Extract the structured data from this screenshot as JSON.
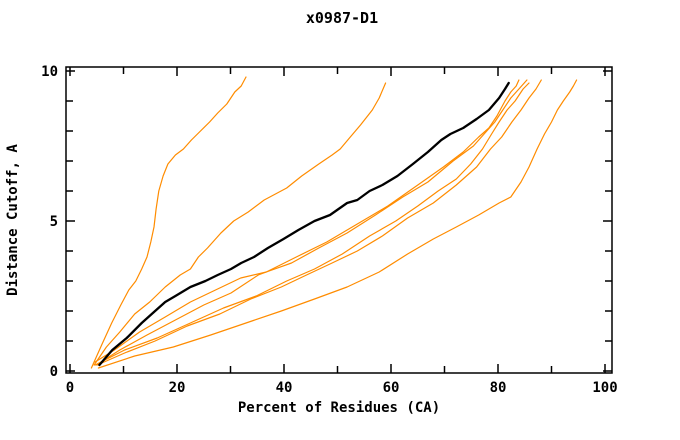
{
  "window": {
    "title": "x0987-D1"
  },
  "chart_data": {
    "type": "line",
    "title": "x0987-D1",
    "xlabel": "Percent of Residues (CA)",
    "ylabel": "Distance Cutoff, A",
    "xlim": [
      0,
      100
    ],
    "ylim": [
      0,
      10
    ],
    "x_tick_minor_step": 10,
    "x_tick_label_step": 20,
    "x_tick_labels": [
      "0",
      "20",
      "40",
      "60",
      "80",
      "100"
    ],
    "y_tick_minor_step": 1,
    "y_tick_label_step": 5,
    "y_tick_labels": [
      "0",
      "5",
      "10"
    ],
    "grid": false,
    "legend": "none",
    "frame": "box with mirrored inward ticks",
    "colors": {
      "model_orange": "#ff8c00",
      "reference_black": "#000000",
      "background": "#ffffff"
    },
    "series": [
      {
        "name": "model-orange-1",
        "color": "#ff8c00",
        "width": 1.2,
        "points": [
          [
            4,
            0.1
          ],
          [
            6,
            0.9
          ],
          [
            7.8,
            1.6
          ],
          [
            9.5,
            2.2
          ],
          [
            11,
            2.7
          ],
          [
            12.3,
            3
          ],
          [
            13.4,
            3.4
          ],
          [
            14.4,
            3.8
          ],
          [
            15.1,
            4.3
          ],
          [
            15.7,
            4.8
          ],
          [
            16.1,
            5.4
          ],
          [
            16.6,
            6
          ],
          [
            17.4,
            6.5
          ],
          [
            18.3,
            6.9
          ],
          [
            19.7,
            7.2
          ],
          [
            21.2,
            7.4
          ],
          [
            22.7,
            7.7
          ],
          [
            24.4,
            8
          ],
          [
            26.1,
            8.3
          ],
          [
            27.6,
            8.6
          ],
          [
            29.3,
            8.9
          ],
          [
            30.8,
            9.3
          ],
          [
            32,
            9.5
          ],
          [
            32.9,
            9.8
          ]
        ]
      },
      {
        "name": "model-orange-2",
        "color": "#ff8c00",
        "width": 1.2,
        "points": [
          [
            4.5,
            0.2
          ],
          [
            6.8,
            0.8
          ],
          [
            9.3,
            1.3
          ],
          [
            12.1,
            1.9
          ],
          [
            14.9,
            2.3
          ],
          [
            17.8,
            2.8
          ],
          [
            20.6,
            3.2
          ],
          [
            22.5,
            3.4
          ],
          [
            24,
            3.8
          ],
          [
            25.7,
            4.1
          ],
          [
            28.2,
            4.6
          ],
          [
            30.6,
            5
          ],
          [
            33.3,
            5.3
          ],
          [
            36.3,
            5.7
          ],
          [
            40.5,
            6.1
          ],
          [
            43.3,
            6.5
          ],
          [
            46.5,
            6.9
          ],
          [
            49,
            7.2
          ],
          [
            50.5,
            7.4
          ],
          [
            52.4,
            7.8
          ],
          [
            54.3,
            8.2
          ],
          [
            56.5,
            8.7
          ],
          [
            57.8,
            9.1
          ],
          [
            59,
            9.6
          ]
        ]
      },
      {
        "name": "model-orange-3",
        "color": "#ff8c00",
        "width": 1.2,
        "points": [
          [
            4.7,
            0.3
          ],
          [
            8.3,
            0.7
          ],
          [
            13,
            1.3
          ],
          [
            17.8,
            1.8
          ],
          [
            22.5,
            2.3
          ],
          [
            27.2,
            2.7
          ],
          [
            31.9,
            3.1
          ],
          [
            36.7,
            3.3
          ],
          [
            42.3,
            3.8
          ],
          [
            48,
            4.3
          ],
          [
            53.7,
            4.9
          ],
          [
            59.4,
            5.5
          ],
          [
            65,
            6.2
          ],
          [
            69.8,
            6.8
          ],
          [
            73.5,
            7.3
          ],
          [
            76.4,
            7.8
          ],
          [
            78.3,
            8.1
          ],
          [
            79.8,
            8.5
          ],
          [
            81.3,
            9
          ],
          [
            82.4,
            9.3
          ],
          [
            83.4,
            9.5
          ],
          [
            83.9,
            9.7
          ]
        ]
      },
      {
        "name": "model-orange-4",
        "color": "#ff8c00",
        "width": 1.2,
        "points": [
          [
            4.9,
            0.2
          ],
          [
            9.3,
            0.7
          ],
          [
            14.4,
            1.2
          ],
          [
            19.7,
            1.7
          ],
          [
            25,
            2.2
          ],
          [
            30.1,
            2.6
          ],
          [
            35.2,
            3.2
          ],
          [
            36.7,
            3.3
          ],
          [
            41.4,
            3.6
          ],
          [
            46.5,
            4.1
          ],
          [
            51.8,
            4.6
          ],
          [
            57.1,
            5.2
          ],
          [
            62.2,
            5.8
          ],
          [
            66.9,
            6.3
          ],
          [
            71.6,
            7
          ],
          [
            75.4,
            7.5
          ],
          [
            77.9,
            8
          ],
          [
            79.4,
            8.3
          ],
          [
            80.9,
            8.7
          ],
          [
            82.4,
            9.1
          ],
          [
            83.9,
            9.4
          ],
          [
            85.4,
            9.7
          ]
        ]
      },
      {
        "name": "model-orange-5",
        "color": "#ff8c00",
        "width": 1.2,
        "points": [
          [
            5.1,
            0.2
          ],
          [
            10.2,
            0.6
          ],
          [
            15.9,
            1
          ],
          [
            21.9,
            1.5
          ],
          [
            28,
            1.9
          ],
          [
            33.8,
            2.4
          ],
          [
            39.5,
            2.8
          ],
          [
            44.2,
            3.2
          ],
          [
            49,
            3.6
          ],
          [
            53.7,
            4
          ],
          [
            58.4,
            4.5
          ],
          [
            63.1,
            5.1
          ],
          [
            67.9,
            5.6
          ],
          [
            72.2,
            6.2
          ],
          [
            76,
            6.8
          ],
          [
            78.6,
            7.4
          ],
          [
            80.7,
            7.8
          ],
          [
            82.6,
            8.3
          ],
          [
            84.3,
            8.7
          ],
          [
            85.8,
            9.1
          ],
          [
            87.1,
            9.4
          ],
          [
            88.1,
            9.7
          ]
        ]
      },
      {
        "name": "model-orange-6",
        "color": "#ff8c00",
        "width": 1.2,
        "points": [
          [
            4.7,
            0.2
          ],
          [
            10.2,
            0.7
          ],
          [
            16.3,
            1.1
          ],
          [
            22.5,
            1.6
          ],
          [
            28.7,
            2.1
          ],
          [
            34.8,
            2.5
          ],
          [
            40.5,
            3
          ],
          [
            45.7,
            3.4
          ],
          [
            50.9,
            3.9
          ],
          [
            56,
            4.5
          ],
          [
            60.9,
            5
          ],
          [
            65,
            5.5
          ],
          [
            68.8,
            6
          ],
          [
            72.2,
            6.4
          ],
          [
            74.9,
            6.9
          ],
          [
            77.1,
            7.4
          ],
          [
            78.8,
            7.9
          ],
          [
            80.2,
            8.3
          ],
          [
            81.7,
            8.7
          ],
          [
            83.2,
            9
          ],
          [
            84.7,
            9.4
          ],
          [
            85.8,
            9.6
          ]
        ]
      },
      {
        "name": "model-orange-7",
        "color": "#ff8c00",
        "width": 1.2,
        "points": [
          [
            5.3,
            0.1
          ],
          [
            12.1,
            0.5
          ],
          [
            19.3,
            0.8
          ],
          [
            26.3,
            1.2
          ],
          [
            32.9,
            1.6
          ],
          [
            39.5,
            2
          ],
          [
            45.7,
            2.4
          ],
          [
            51.8,
            2.8
          ],
          [
            57.8,
            3.3
          ],
          [
            63.1,
            3.9
          ],
          [
            67.9,
            4.4
          ],
          [
            72.2,
            4.8
          ],
          [
            76.4,
            5.2
          ],
          [
            80.2,
            5.6
          ],
          [
            82.4,
            5.8
          ],
          [
            84.3,
            6.3
          ],
          [
            85.8,
            6.8
          ],
          [
            87.3,
            7.4
          ],
          [
            88.7,
            7.9
          ],
          [
            90,
            8.3
          ],
          [
            91.1,
            8.7
          ],
          [
            92.2,
            9
          ],
          [
            93.4,
            9.3
          ],
          [
            94.1,
            9.5
          ],
          [
            94.7,
            9.7
          ]
        ]
      },
      {
        "name": "reference-black",
        "color": "#000000",
        "width": 2.3,
        "points": [
          [
            5.5,
            0.2
          ],
          [
            7.9,
            0.7
          ],
          [
            10.6,
            1.1
          ],
          [
            13.4,
            1.6
          ],
          [
            15.9,
            2
          ],
          [
            17.8,
            2.3
          ],
          [
            19.7,
            2.5
          ],
          [
            22.5,
            2.8
          ],
          [
            25.3,
            3
          ],
          [
            27.6,
            3.2
          ],
          [
            30.1,
            3.4
          ],
          [
            32,
            3.6
          ],
          [
            34.4,
            3.8
          ],
          [
            37,
            4.1
          ],
          [
            39.9,
            4.4
          ],
          [
            42.7,
            4.7
          ],
          [
            45.7,
            5
          ],
          [
            48.6,
            5.2
          ],
          [
            51.8,
            5.6
          ],
          [
            53.7,
            5.7
          ],
          [
            56,
            6
          ],
          [
            58.4,
            6.2
          ],
          [
            61.2,
            6.5
          ],
          [
            64.1,
            6.9
          ],
          [
            66.9,
            7.3
          ],
          [
            69.4,
            7.7
          ],
          [
            71.1,
            7.9
          ],
          [
            73.5,
            8.1
          ],
          [
            76,
            8.4
          ],
          [
            78.3,
            8.7
          ],
          [
            80.2,
            9.1
          ],
          [
            81.3,
            9.4
          ],
          [
            82,
            9.6
          ]
        ]
      }
    ]
  }
}
